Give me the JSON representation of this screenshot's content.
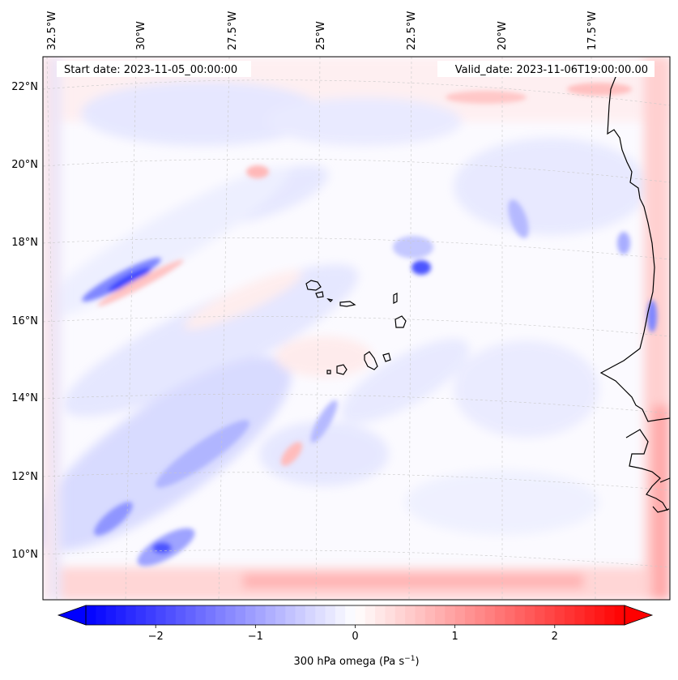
{
  "header": {
    "start_date": "Start date: 2023-11-05_00:00:00",
    "valid_date": "Valid_date: 2023-11-06T19:00:00.00"
  },
  "map": {
    "projection": "lambert-conformal",
    "variable": "300 hPa omega",
    "lon_labels": [
      "32.5°W",
      "30°W",
      "27.5°W",
      "25°W",
      "22.5°W",
      "20°W",
      "17.5°W"
    ],
    "lat_labels": [
      "22°N",
      "20°N",
      "18°N",
      "16°N",
      "14°N",
      "12°N",
      "10°N"
    ],
    "gridlines": true,
    "gridline_style": "dashed-grey",
    "coastline_color": "#000000",
    "colormap": "bwr",
    "features": [
      {
        "kind": "descending-band",
        "sign": "positive",
        "region": "southern edge"
      },
      {
        "kind": "descending-band",
        "sign": "positive",
        "region": "eastern edge"
      },
      {
        "kind": "ascending-streak",
        "sign": "negative",
        "region": "northwest near 17N 30W"
      },
      {
        "kind": "ascending-streak",
        "sign": "negative",
        "region": "southwest 10N-14N"
      },
      {
        "kind": "ascending-cell",
        "sign": "negative",
        "region": "near 17N 23W"
      }
    ]
  },
  "colorbar": {
    "label": "300 hPa omega (Pa s",
    "label_exponent": "−1",
    "label_close": ")",
    "ticks": [
      {
        "value": -2,
        "label": "−2"
      },
      {
        "value": -1,
        "label": "−1"
      },
      {
        "value": 0,
        "label": "0"
      },
      {
        "value": 1,
        "label": "1"
      },
      {
        "value": 2,
        "label": "2"
      }
    ],
    "vmin": -2.7,
    "vmax": 2.7,
    "extend": "both",
    "min_color": "#0000ff",
    "mid_color": "#ffffff",
    "max_color": "#ff0000"
  }
}
